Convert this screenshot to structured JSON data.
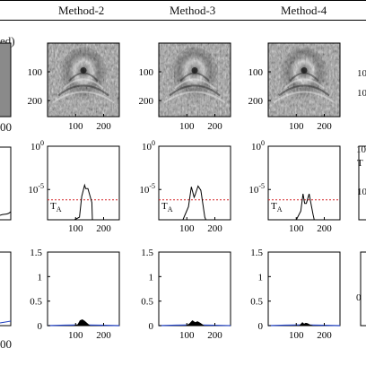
{
  "header": {
    "columns": [
      "Method-2",
      "Method-3",
      "Method-4"
    ],
    "fragments": {
      "row0_label_tail": "ed)",
      "left_tick_bottom": "00",
      "left_tick_row2": "00",
      "right_tick_top": "10",
      "right_tick_mid": "10",
      "right_tick_mid2": "10",
      "right_tick_row3": "0",
      "right_letter": "T"
    }
  },
  "colors": {
    "threshold": "#d62728",
    "envelope": "#000000",
    "blue_curve": "#1f3fbf",
    "axis": "#000000"
  },
  "chart_data": [
    {
      "type": "heatmap",
      "panel": "image",
      "column": "Method-2",
      "x_ticks": [
        "100",
        "200"
      ],
      "y_ticks": [
        "100",
        "200"
      ],
      "xlim": [
        0,
        256
      ],
      "ylim": [
        256,
        0
      ],
      "colormap": "gray"
    },
    {
      "type": "heatmap",
      "panel": "image",
      "column": "Method-3",
      "x_ticks": [
        "100",
        "200"
      ],
      "y_ticks": [
        "100",
        "200"
      ],
      "xlim": [
        0,
        256
      ],
      "ylim": [
        256,
        0
      ],
      "colormap": "gray"
    },
    {
      "type": "heatmap",
      "panel": "image",
      "column": "Method-4",
      "x_ticks": [
        "100",
        "200"
      ],
      "y_ticks": [
        "100",
        "200"
      ],
      "xlim": [
        0,
        256
      ],
      "ylim": [
        256,
        0
      ],
      "colormap": "gray"
    },
    {
      "type": "line",
      "panel": "spectrum",
      "column": "Method-2",
      "yscale": "log",
      "y_ticks": [
        "10^0",
        "10^-5"
      ],
      "ylim_exp": [
        -8.5,
        0
      ],
      "xlim": [
        0,
        256
      ],
      "x_ticks": [
        "100",
        "200"
      ],
      "threshold_label": "T_A",
      "threshold_exp": -6.2,
      "series": [
        {
          "x": [
            96,
            114,
            122,
            132,
            136,
            144,
            158,
            160
          ],
          "log10y": [
            -8.5,
            -8.2,
            -5.8,
            -4.5,
            -4.9,
            -4.9,
            -6.5,
            -8.5
          ]
        }
      ]
    },
    {
      "type": "line",
      "panel": "spectrum",
      "column": "Method-3",
      "yscale": "log",
      "y_ticks": [
        "10^0",
        "10^-5"
      ],
      "ylim_exp": [
        -8.5,
        0
      ],
      "xlim": [
        0,
        256
      ],
      "x_ticks": [
        "100",
        "200"
      ],
      "threshold_label": "T_A",
      "threshold_exp": -6.2,
      "series": [
        {
          "x": [
            86,
            106,
            116,
            126,
            130,
            140,
            150,
            164,
            168
          ],
          "log10y": [
            -8.5,
            -7.0,
            -4.7,
            -5.9,
            -5.6,
            -4.6,
            -5.1,
            -8.2,
            -8.5
          ]
        }
      ]
    },
    {
      "type": "line",
      "panel": "spectrum",
      "column": "Method-4",
      "yscale": "log",
      "y_ticks": [
        "10^0",
        "10^-5"
      ],
      "ylim_exp": [
        -8.5,
        0
      ],
      "xlim": [
        0,
        256
      ],
      "x_ticks": [
        "100",
        "200"
      ],
      "threshold_label": "T_A",
      "threshold_exp": -6.2,
      "series": [
        {
          "x": [
            100,
            116,
            124,
            130,
            136,
            146,
            160,
            164
          ],
          "log10y": [
            -8.5,
            -7.5,
            -5.5,
            -6.6,
            -6.6,
            -5.5,
            -7.9,
            -8.5
          ]
        }
      ]
    },
    {
      "type": "area",
      "panel": "profile",
      "column": "Method-2",
      "ylim": [
        0,
        1.5
      ],
      "y_ticks": [
        "0",
        "0.5",
        "1",
        "1.5"
      ],
      "xlim": [
        0,
        256
      ],
      "x_ticks": [
        "100",
        "200"
      ],
      "series": [
        {
          "name": "",
          "x": [
            96,
            108,
            116,
            124,
            132,
            140,
            150
          ],
          "values": [
            0,
            0.02,
            0.1,
            0.12,
            0.09,
            0.05,
            0
          ]
        }
      ],
      "baseline_curve": {
        "x": [
          0,
          60,
          120,
          180,
          256
        ],
        "values": [
          0.0,
          0.01,
          0.015,
          0.01,
          0.0
        ]
      }
    },
    {
      "type": "area",
      "panel": "profile",
      "column": "Method-3",
      "ylim": [
        0,
        1.5
      ],
      "y_ticks": [
        "0",
        "0.5",
        "1",
        "1.5"
      ],
      "xlim": [
        0,
        256
      ],
      "x_ticks": [
        "100",
        "200"
      ],
      "series": [
        {
          "name": "",
          "x": [
            100,
            112,
            120,
            130,
            138,
            148,
            160
          ],
          "values": [
            0,
            0.05,
            0.1,
            0.06,
            0.08,
            0.05,
            0
          ]
        }
      ],
      "baseline_curve": {
        "x": [
          0,
          60,
          120,
          180,
          256
        ],
        "values": [
          0.0,
          0.01,
          0.015,
          0.01,
          0.0
        ]
      }
    },
    {
      "type": "area",
      "panel": "profile",
      "column": "Method-4",
      "ylim": [
        0,
        1.5
      ],
      "y_ticks": [
        "0",
        "0.5",
        "1",
        "1.5"
      ],
      "xlim": [
        0,
        256
      ],
      "x_ticks": [
        "100",
        "200"
      ],
      "series": [
        {
          "name": "",
          "x": [
            112,
            122,
            128,
            134,
            140,
            150,
            158
          ],
          "values": [
            0,
            0.06,
            0.03,
            0.05,
            0.04,
            0.01,
            0
          ]
        }
      ],
      "baseline_curve": {
        "x": [
          0,
          60,
          120,
          180,
          256
        ],
        "values": [
          0.0,
          0.01,
          0.015,
          0.01,
          0.0
        ]
      }
    }
  ]
}
